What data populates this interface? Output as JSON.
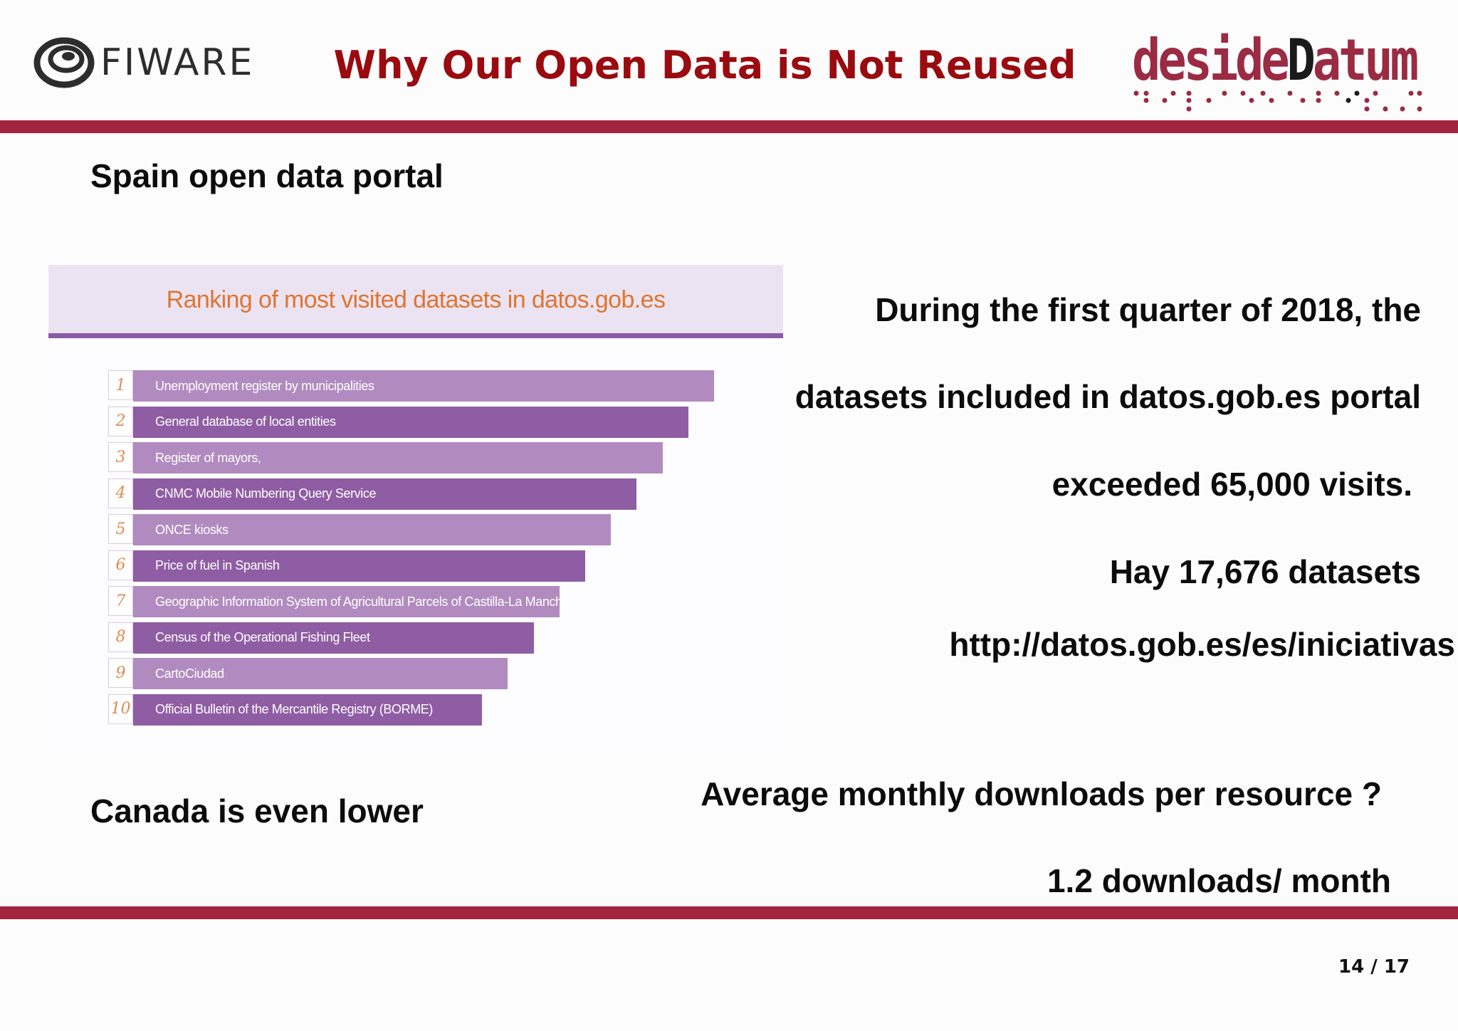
{
  "header": {
    "left_logo_text": "FIWARE",
    "title": "Why Our Open Data is Not Reused",
    "right_logo_text_light": "deside",
    "right_logo_text_dark": "D",
    "right_logo_text_tail": "atum"
  },
  "left": {
    "heading": "Spain open data portal",
    "footer_text": "Canada is even lower"
  },
  "ranking": {
    "title": "Ranking of most visited datasets in datos.gob.es",
    "items": [
      {
        "rank": "1",
        "label": "Unemployment register by municipalities"
      },
      {
        "rank": "2",
        "label": "General database of local entities"
      },
      {
        "rank": "3",
        "label": "Register of mayors,"
      },
      {
        "rank": "4",
        "label": "CNMC Mobile Numbering Query Service"
      },
      {
        "rank": "5",
        "label": "ONCE kiosks"
      },
      {
        "rank": "6",
        "label": "Price of fuel in Spanish"
      },
      {
        "rank": "7",
        "label": "Geographic Information System of Agricultural Parcels of Castilla-La Mancha"
      },
      {
        "rank": "8",
        "label": "Census of the Operational Fishing Fleet"
      },
      {
        "rank": "9",
        "label": "CartoCiudad"
      },
      {
        "rank": "10",
        "label": "Official Bulletin of the Mercantile Registry (BORME)"
      }
    ]
  },
  "right": {
    "line1": "During the first quarter of 2018, the",
    "line2": "datasets included in datos.gob.es portal",
    "line3": "exceeded 65,000 visits.",
    "line4": "Hay 17,676 datasets",
    "url": "http://datos.gob.es/es/iniciativas",
    "question": "Average monthly downloads per resource ?",
    "answer": "1.2 downloads/ month"
  },
  "page": {
    "number": "14 / 17"
  },
  "colors": {
    "accent_rule": "#a3243f",
    "title_red": "#9a0b10",
    "bar_light": "#b18bbf",
    "bar_dark": "#8f5da3",
    "ranking_title_orange": "#de7530"
  }
}
